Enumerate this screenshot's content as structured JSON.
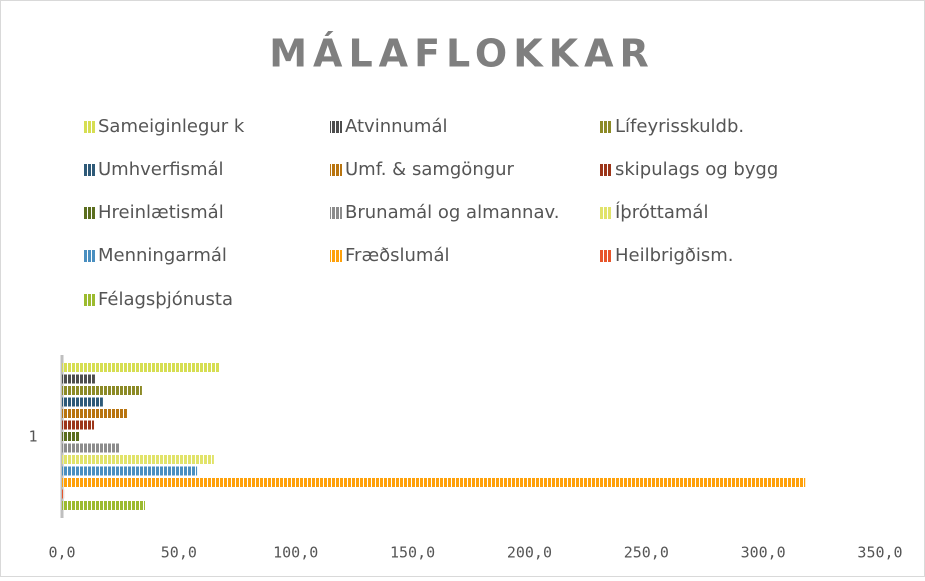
{
  "chart_data": {
    "type": "bar",
    "orientation": "horizontal",
    "title": "MÁLAFLOKKAR",
    "categories": [
      "1"
    ],
    "series": [
      {
        "name": "Sameiginlegur k",
        "color": "#d6de52",
        "values": [
          67.6
        ]
      },
      {
        "name": "Atvinnumál",
        "color": "#4d4d4d",
        "values": [
          14.1
        ]
      },
      {
        "name": "Lífeyrisskuldb.",
        "color": "#8c8a26",
        "values": [
          34.2
        ]
      },
      {
        "name": "Umhverfismál",
        "color": "#2e5a78",
        "values": [
          17.5
        ]
      },
      {
        "name": "Umf. & samgöngur",
        "color": "#b8740f",
        "values": [
          27.8
        ]
      },
      {
        "name": "skipulags og bygg",
        "color": "#9c3519",
        "values": [
          13.7
        ]
      },
      {
        "name": "Hreinlætismál",
        "color": "#5b6e1e",
        "values": [
          7.7
        ]
      },
      {
        "name": "Brunamál og almannav.",
        "color": "#8c8c8c",
        "values": [
          24.4
        ]
      },
      {
        "name": "Íþróttamál",
        "color": "#e1e36a",
        "values": [
          65.0
        ]
      },
      {
        "name": "Menningarmál",
        "color": "#4a8fc0",
        "values": [
          57.8
        ]
      },
      {
        "name": "Fræðslumál",
        "color": "#ffa10a",
        "values": [
          318.0
        ]
      },
      {
        "name": "Heilbrigðism.",
        "color": "#e8552a",
        "values": [
          0.9
        ]
      },
      {
        "name": "Félagsþjónusta",
        "color": "#9cbb2f",
        "values": [
          35.5
        ]
      }
    ],
    "xlim": [
      0,
      350
    ],
    "xticks": [
      {
        "value": 0,
        "label": "0,0"
      },
      {
        "value": 50,
        "label": "50,0"
      },
      {
        "value": 100,
        "label": "100,0"
      },
      {
        "value": 150,
        "label": "150,0"
      },
      {
        "value": 200,
        "label": "200,0"
      },
      {
        "value": 250,
        "label": "250,0"
      },
      {
        "value": 300,
        "label": "300,0"
      },
      {
        "value": 350,
        "label": "350,0"
      }
    ],
    "grid": false,
    "legend": "top"
  }
}
